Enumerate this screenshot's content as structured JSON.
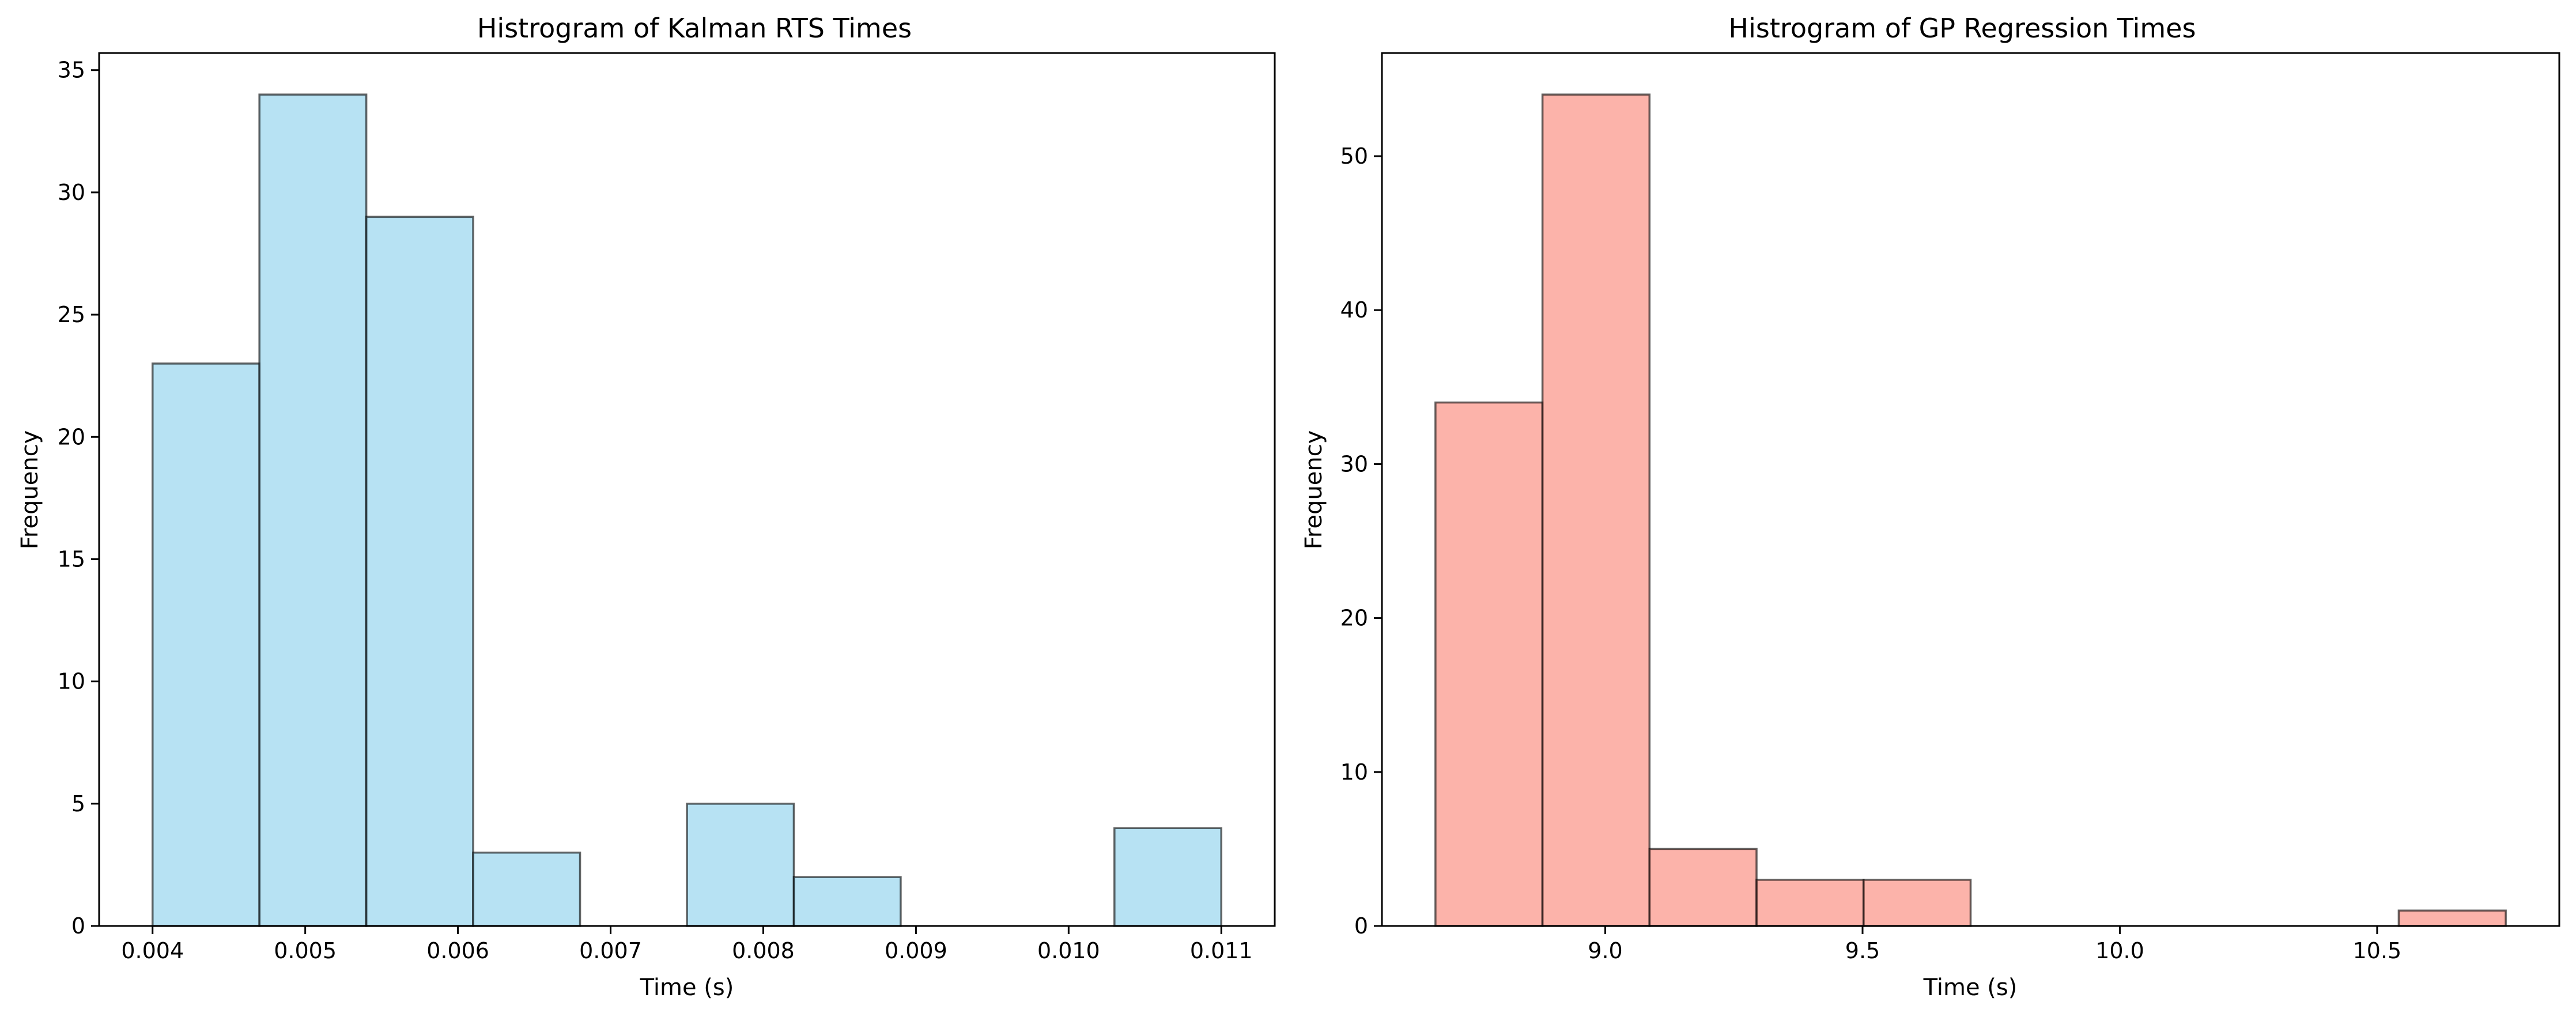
{
  "chart_data": [
    {
      "type": "bar",
      "title": "Histrogram of Kalman RTS Times",
      "xlabel": "Time (s)",
      "ylabel": "Frequency",
      "color": "#87CEEB",
      "edge_color": "#000000",
      "bin_edges": [
        0.004,
        0.0047,
        0.0054,
        0.0061,
        0.0068,
        0.0075,
        0.0082,
        0.0089,
        0.0096,
        0.0103,
        0.011
      ],
      "values": [
        23,
        34,
        29,
        3,
        0,
        5,
        2,
        0,
        0,
        4
      ],
      "xlim": [
        0.00365,
        0.01135
      ],
      "ylim": [
        0,
        35.7
      ],
      "xticks": [
        0.004,
        0.005,
        0.006,
        0.007,
        0.008,
        0.009,
        0.01,
        0.011
      ],
      "xtick_labels": [
        "0.004",
        "0.005",
        "0.006",
        "0.007",
        "0.008",
        "0.009",
        "0.010",
        "0.011"
      ],
      "yticks": [
        0,
        5,
        10,
        15,
        20,
        25,
        30,
        35
      ],
      "ytick_labels": [
        "0",
        "5",
        "10",
        "15",
        "20",
        "25",
        "30",
        "35"
      ],
      "grid": false
    },
    {
      "type": "bar",
      "title": "Histrogram of GP Regression Times",
      "xlabel": "Time (s)",
      "ylabel": "Frequency",
      "color": "#FA8072",
      "edge_color": "#000000",
      "bin_edges": [
        8.67,
        8.878,
        9.086,
        9.294,
        9.502,
        9.71,
        9.918,
        10.126,
        10.334,
        10.542,
        10.75
      ],
      "values": [
        34,
        54,
        5,
        3,
        3,
        0,
        0,
        0,
        0,
        1
      ],
      "xlim": [
        8.566,
        10.854
      ],
      "ylim": [
        0,
        56.7
      ],
      "xticks": [
        9.0,
        9.5,
        10.0,
        10.5
      ],
      "xtick_labels": [
        "9.0",
        "9.5",
        "10.0",
        "10.5"
      ],
      "yticks": [
        0,
        10,
        20,
        30,
        40,
        50
      ],
      "ytick_labels": [
        "0",
        "10",
        "20",
        "30",
        "40",
        "50"
      ],
      "grid": false
    }
  ]
}
